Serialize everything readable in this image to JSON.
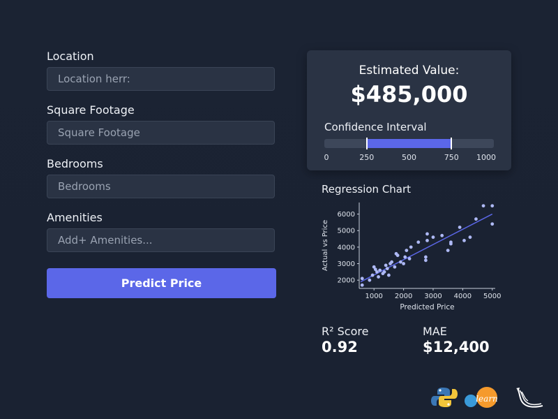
{
  "form": {
    "location": {
      "label": "Location",
      "placeholder": "Location herr:"
    },
    "square_footage": {
      "label": "Square Footage",
      "placeholder": "Square Footage"
    },
    "bedrooms": {
      "label": "Bedrooms",
      "placeholder": "Bedrooms"
    },
    "amenities": {
      "label": "Amenities",
      "placeholder": "Add+ Amenities..."
    },
    "predict_label": "Predict Price"
  },
  "estimate": {
    "title": "Estimated Value:",
    "value": "$485,000",
    "ci_label": "Confidence Interval",
    "ci_low": 250,
    "ci_high": 750,
    "ci_min": 0,
    "ci_max": 1000,
    "ci_ticks": [
      "0",
      "250",
      "500",
      "750",
      "1000"
    ]
  },
  "regression": {
    "title": "Regression Chart"
  },
  "metrics": {
    "r2_label": "R² Score",
    "r2_value": "0.92",
    "mae_label": "MAE",
    "mae_value": "$12,400"
  },
  "logos": {
    "python": "python-logo-icon",
    "sklearn": "scikit-learn-logo-icon",
    "sklearn_text": "learn",
    "flask": "flask-logo-icon"
  },
  "colors": {
    "accent": "#5b67e8",
    "background": "#1b2333",
    "card": "#2a3344"
  },
  "chart_data": {
    "type": "scatter",
    "title": "",
    "xlabel": "Predicted Price",
    "ylabel": "Actual vs Price",
    "xlim": [
      500,
      5100
    ],
    "ylim": [
      1500,
      6700
    ],
    "xticks": [
      1000,
      2000,
      3000,
      4000,
      5000
    ],
    "yticks": [
      2000,
      3000,
      4000,
      5000,
      6000
    ],
    "grid": false,
    "series": [
      {
        "points": [
          [
            600,
            2100
          ],
          [
            600,
            1700
          ],
          [
            850,
            2000
          ],
          [
            950,
            2300
          ],
          [
            1000,
            2800
          ],
          [
            1050,
            2650
          ],
          [
            1100,
            2500
          ],
          [
            1150,
            2200
          ],
          [
            1200,
            2600
          ],
          [
            1300,
            2400
          ],
          [
            1350,
            2500
          ],
          [
            1400,
            2900
          ],
          [
            1450,
            2700
          ],
          [
            1500,
            2300
          ],
          [
            1550,
            3000
          ],
          [
            1600,
            3100
          ],
          [
            1700,
            2800
          ],
          [
            1750,
            3600
          ],
          [
            1800,
            3500
          ],
          [
            1900,
            3100
          ],
          [
            2000,
            3000
          ],
          [
            2050,
            3400
          ],
          [
            2100,
            3800
          ],
          [
            2200,
            3300
          ],
          [
            2250,
            4000
          ],
          [
            2500,
            4300
          ],
          [
            2750,
            3400
          ],
          [
            2750,
            3200
          ],
          [
            2800,
            4800
          ],
          [
            2800,
            4400
          ],
          [
            3000,
            4600
          ],
          [
            3300,
            4700
          ],
          [
            3500,
            3800
          ],
          [
            3600,
            4200
          ],
          [
            3600,
            4300
          ],
          [
            3900,
            5200
          ],
          [
            4050,
            4400
          ],
          [
            4250,
            4600
          ],
          [
            4450,
            5700
          ],
          [
            4700,
            6500
          ],
          [
            5000,
            6500
          ],
          [
            5000,
            5400
          ]
        ]
      }
    ],
    "trendline": [
      [
        550,
        1900
      ],
      [
        5000,
        6000
      ]
    ]
  }
}
